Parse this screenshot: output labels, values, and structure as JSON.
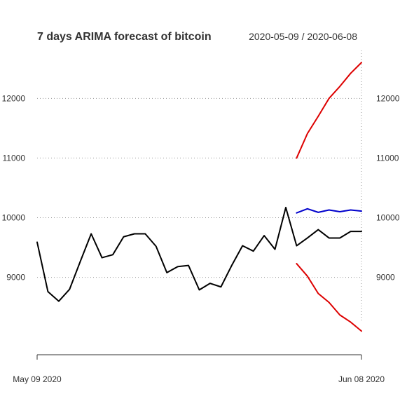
{
  "chart_data": {
    "type": "line",
    "title": "7 days ARIMA forecast of bitcoin",
    "date_range": "2020-05-09 / 2020-06-08",
    "x_tick_labels": [
      "May 09 2020",
      "Jun 08 2020"
    ],
    "y_ticks": [
      9000,
      10000,
      11000,
      12000
    ],
    "ylim": [
      7950,
      12650
    ],
    "grid": "horizontal dotted",
    "series": [
      {
        "name": "",
        "role": "observed",
        "color": "#000000",
        "x": [
          "2020-05-09",
          "2020-05-10",
          "2020-05-11",
          "2020-05-12",
          "2020-05-13",
          "2020-05-14",
          "2020-05-15",
          "2020-05-16",
          "2020-05-17",
          "2020-05-18",
          "2020-05-19",
          "2020-05-20",
          "2020-05-21",
          "2020-05-22",
          "2020-05-23",
          "2020-05-24",
          "2020-05-25",
          "2020-05-26",
          "2020-05-27",
          "2020-05-28",
          "2020-05-29",
          "2020-05-30",
          "2020-05-31",
          "2020-06-01"
        ],
        "values": [
          9590,
          8760,
          8600,
          8800,
          9270,
          9730,
          9330,
          9380,
          9680,
          9730,
          9730,
          9520,
          9080,
          9180,
          9200,
          8790,
          8900,
          8840,
          9200,
          9530,
          9440,
          9700,
          9470,
          10170
        ]
      },
      {
        "name": "",
        "role": "actual",
        "color": "#000000",
        "x": [
          "2020-06-01",
          "2020-06-02",
          "2020-06-03",
          "2020-06-04",
          "2020-06-05",
          "2020-06-06",
          "2020-06-07",
          "2020-06-08"
        ],
        "values": [
          10170,
          9530,
          9660,
          9800,
          9660,
          9660,
          9770,
          9770
        ]
      },
      {
        "name": "",
        "role": "forecast",
        "color": "#0000cc",
        "x": [
          "2020-06-02",
          "2020-06-03",
          "2020-06-04",
          "2020-06-05",
          "2020-06-06",
          "2020-06-07",
          "2020-06-08"
        ],
        "values": [
          10080,
          10150,
          10090,
          10130,
          10100,
          10130,
          10110
        ]
      },
      {
        "name": "",
        "role": "upper bound",
        "color": "#dd0000",
        "x": [
          "2020-06-02",
          "2020-06-03",
          "2020-06-04",
          "2020-06-05",
          "2020-06-06",
          "2020-06-07",
          "2020-06-08"
        ],
        "values": [
          11000,
          11410,
          11700,
          12000,
          12200,
          12420,
          12600
        ]
      },
      {
        "name": "",
        "role": "lower bound",
        "color": "#dd0000",
        "x": [
          "2020-06-02",
          "2020-06-03",
          "2020-06-04",
          "2020-06-05",
          "2020-06-06",
          "2020-06-07",
          "2020-06-08"
        ],
        "values": [
          9230,
          9020,
          8730,
          8580,
          8370,
          8250,
          8100
        ]
      }
    ]
  }
}
